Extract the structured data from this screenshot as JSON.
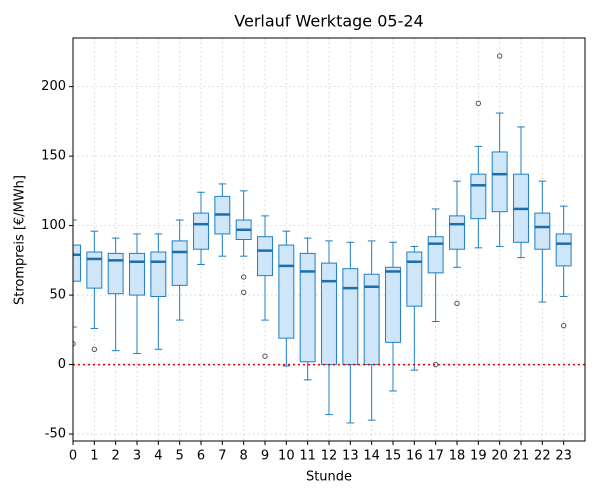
{
  "chart_data": {
    "type": "box",
    "title": "Verlauf Werktage 05-24",
    "x_label": "Stunde",
    "y_label": "Strompreis [€/MWh]",
    "categories": [
      "0",
      "1",
      "2",
      "3",
      "4",
      "5",
      "6",
      "7",
      "8",
      "9",
      "10",
      "11",
      "12",
      "13",
      "14",
      "15",
      "16",
      "17",
      "18",
      "19",
      "20",
      "21",
      "22",
      "23"
    ],
    "xlim": [
      0,
      24
    ],
    "ylim": [
      -55,
      235
    ],
    "yticks": [
      -50,
      0,
      50,
      100,
      150,
      200
    ],
    "grid": true,
    "box_color": "#cfe6f8",
    "edge_color": "#1f7fc4",
    "median_color": "#1a6fae",
    "hline": {
      "value": 0,
      "color": "#e00000"
    },
    "boxes": [
      {
        "whislo": 27,
        "q1": 60,
        "med": 79,
        "q3": 86,
        "whishi": 104,
        "fliers": [
          15
        ]
      },
      {
        "whislo": 26,
        "q1": 55,
        "med": 76,
        "q3": 81,
        "whishi": 96,
        "fliers": [
          11
        ]
      },
      {
        "whislo": 10,
        "q1": 51,
        "med": 75,
        "q3": 80,
        "whishi": 91,
        "fliers": []
      },
      {
        "whislo": 8,
        "q1": 50,
        "med": 74,
        "q3": 80,
        "whishi": 94,
        "fliers": []
      },
      {
        "whislo": 11,
        "q1": 49,
        "med": 74,
        "q3": 81,
        "whishi": 94,
        "fliers": []
      },
      {
        "whislo": 32,
        "q1": 57,
        "med": 81,
        "q3": 89,
        "whishi": 104,
        "fliers": []
      },
      {
        "whislo": 72,
        "q1": 83,
        "med": 101,
        "q3": 109,
        "whishi": 124,
        "fliers": []
      },
      {
        "whislo": 78,
        "q1": 94,
        "med": 108,
        "q3": 121,
        "whishi": 130,
        "fliers": []
      },
      {
        "whislo": 78,
        "q1": 90,
        "med": 97,
        "q3": 104,
        "whishi": 125,
        "fliers": [
          63,
          52
        ]
      },
      {
        "whislo": 32,
        "q1": 64,
        "med": 82,
        "q3": 92,
        "whishi": 107,
        "fliers": [
          6
        ]
      },
      {
        "whislo": -1,
        "q1": 19,
        "med": 71,
        "q3": 86,
        "whishi": 96,
        "fliers": []
      },
      {
        "whislo": -11,
        "q1": 2,
        "med": 67,
        "q3": 80,
        "whishi": 91,
        "fliers": []
      },
      {
        "whislo": -36,
        "q1": 0,
        "med": 60,
        "q3": 73,
        "whishi": 89,
        "fliers": []
      },
      {
        "whislo": -42,
        "q1": 0,
        "med": 55,
        "q3": 69,
        "whishi": 88,
        "fliers": []
      },
      {
        "whislo": -40,
        "q1": 0,
        "med": 56,
        "q3": 65,
        "whishi": 89,
        "fliers": []
      },
      {
        "whislo": -19,
        "q1": 16,
        "med": 67,
        "q3": 70,
        "whishi": 88,
        "fliers": []
      },
      {
        "whislo": -4,
        "q1": 42,
        "med": 74,
        "q3": 81,
        "whishi": 85,
        "fliers": []
      },
      {
        "whislo": 31,
        "q1": 66,
        "med": 87,
        "q3": 92,
        "whishi": 112,
        "fliers": [
          0
        ]
      },
      {
        "whislo": 70,
        "q1": 83,
        "med": 101,
        "q3": 107,
        "whishi": 132,
        "fliers": [
          44
        ]
      },
      {
        "whislo": 84,
        "q1": 105,
        "med": 129,
        "q3": 137,
        "whishi": 157,
        "fliers": [
          188
        ]
      },
      {
        "whislo": 85,
        "q1": 110,
        "med": 137,
        "q3": 153,
        "whishi": 181,
        "fliers": [
          222
        ]
      },
      {
        "whislo": 77,
        "q1": 88,
        "med": 112,
        "q3": 137,
        "whishi": 171,
        "fliers": []
      },
      {
        "whislo": 45,
        "q1": 83,
        "med": 99,
        "q3": 109,
        "whishi": 132,
        "fliers": []
      },
      {
        "whislo": 49,
        "q1": 71,
        "med": 87,
        "q3": 94,
        "whishi": 114,
        "fliers": [
          28
        ]
      }
    ]
  }
}
